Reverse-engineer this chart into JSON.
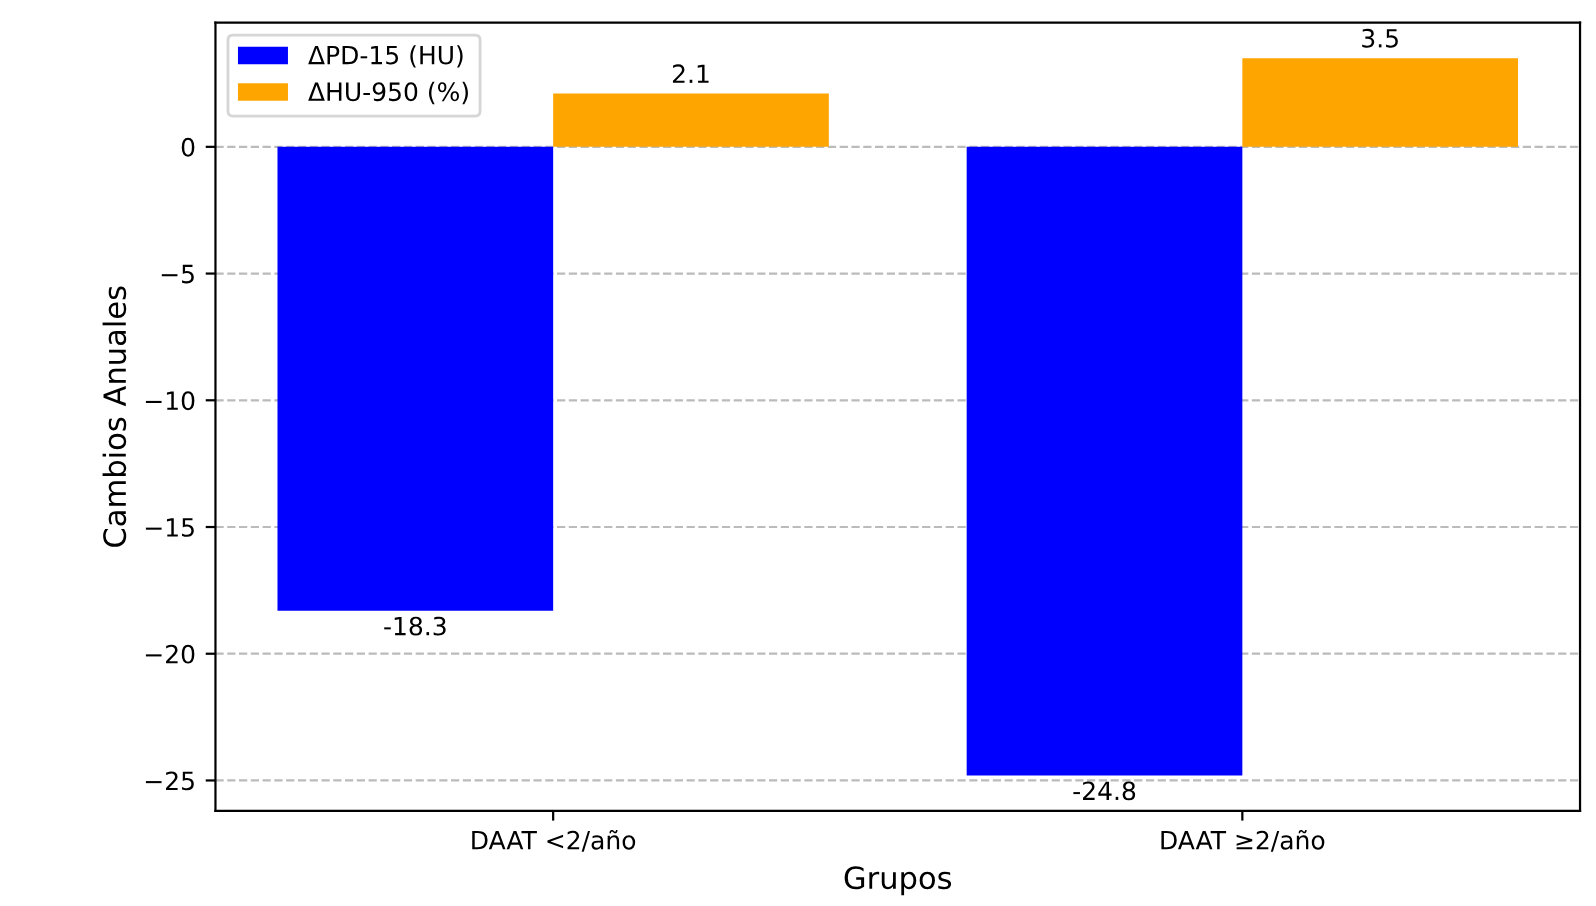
{
  "chart_data": {
    "type": "bar",
    "xlabel": "Grupos",
    "ylabel": "Cambios Anuales",
    "categories": [
      "DAAT <2/año",
      "DAAT ≥2/año"
    ],
    "series": [
      {
        "name": "ΔPD-15 (HU)",
        "color": "#0000ff",
        "values": [
          -18.3,
          -24.8
        ]
      },
      {
        "name": "ΔHU-950 (%)",
        "color": "#ffa500",
        "values": [
          2.1,
          3.5
        ]
      }
    ],
    "ylim": [
      -26.2,
      4.9
    ],
    "yticks": [
      {
        "value": -25,
        "label": "−25"
      },
      {
        "value": -20,
        "label": "−20"
      },
      {
        "value": -15,
        "label": "−15"
      },
      {
        "value": -10,
        "label": "−10"
      },
      {
        "value": -5,
        "label": "−5"
      },
      0
    ],
    "grid": "y",
    "legend": "top left",
    "data_labels": true
  }
}
